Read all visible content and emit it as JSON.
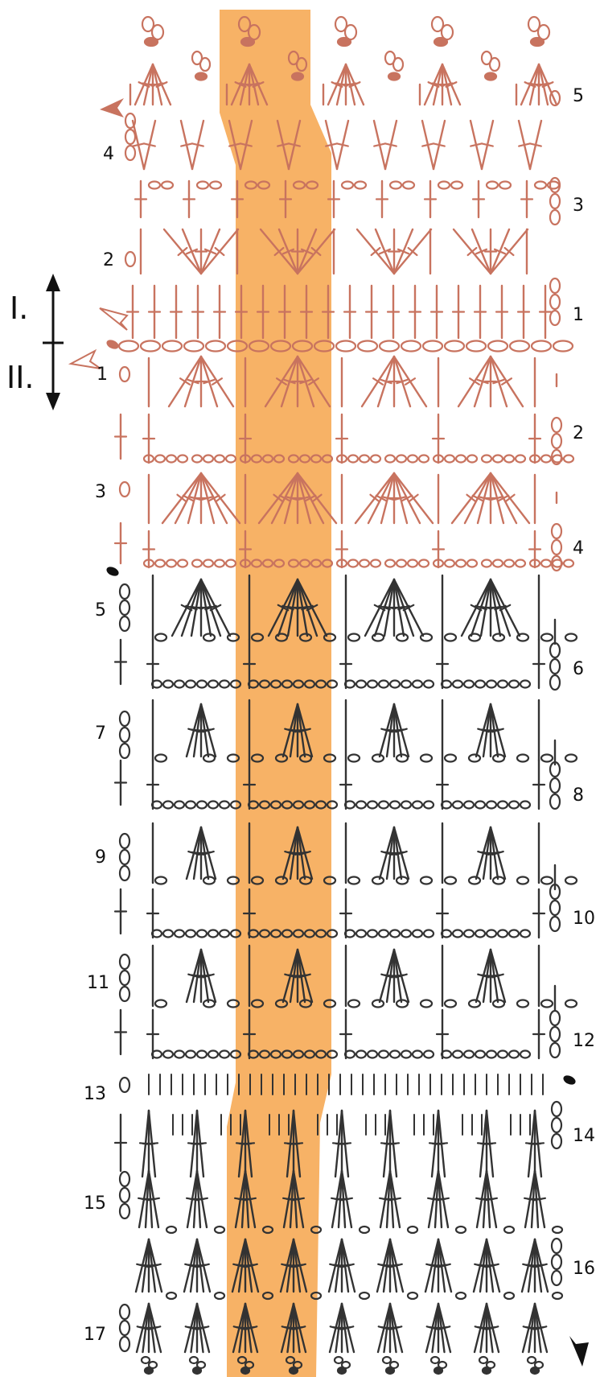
{
  "colors": {
    "background": "#ffffff",
    "highlight": "#f7b266",
    "part_one": "#c8735f",
    "part_two": "#333333"
  },
  "sections": {
    "upper_label": "I.",
    "lower_label": "II."
  },
  "rows_part_one": [
    "1",
    "2",
    "3",
    "4",
    "5"
  ],
  "rows_part_two": [
    "1",
    "2",
    "3",
    "4",
    "5",
    "6",
    "7",
    "8",
    "9",
    "10",
    "11",
    "12",
    "13",
    "14",
    "15",
    "16",
    "17"
  ],
  "icons": {
    "start_marker": "filled-oval",
    "direction_arrow": "double-headed-vertical-arrow",
    "row_arrow": "arrowhead"
  }
}
